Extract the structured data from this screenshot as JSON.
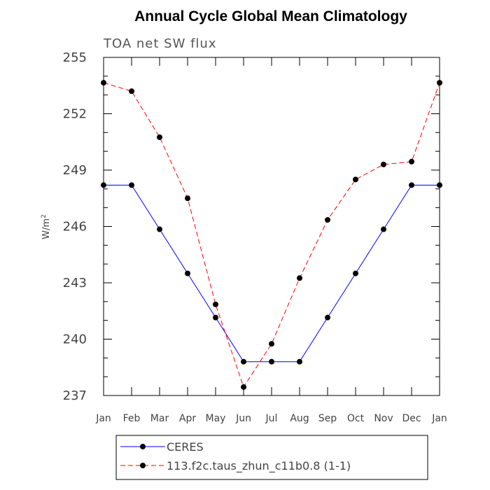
{
  "chart_data": {
    "type": "line",
    "title": "Annual Cycle Global Mean Climatology",
    "subtitle": "TOA net SW flux",
    "ylabel_base": "W/m",
    "ylabel_sup": "2",
    "ylim": [
      237,
      255
    ],
    "yticks": [
      "237",
      "240",
      "243",
      "246",
      "249",
      "252",
      "255"
    ],
    "categories": [
      "Jan",
      "Feb",
      "Mar",
      "Apr",
      "May",
      "Jun",
      "Jul",
      "Aug",
      "Sep",
      "Oct",
      "Nov",
      "Dec",
      "Jan"
    ],
    "series": [
      {
        "name": "CERES",
        "color": "#0000ff",
        "dash": "solid",
        "values": [
          248.2,
          248.2,
          245.85,
          243.5,
          241.15,
          238.8,
          238.8,
          238.8,
          241.15,
          243.5,
          245.85,
          248.2,
          248.2
        ]
      },
      {
        "name": "113.f2c.taus_zhun_c11b0.8 (1-1)",
        "color": "#ff0000",
        "dash": "dashed",
        "values": [
          253.65,
          253.2,
          250.75,
          247.5,
          241.85,
          237.45,
          239.75,
          243.25,
          246.35,
          248.5,
          249.3,
          249.45,
          253.65
        ]
      }
    ],
    "grid": false,
    "legend_position": "bottom"
  }
}
